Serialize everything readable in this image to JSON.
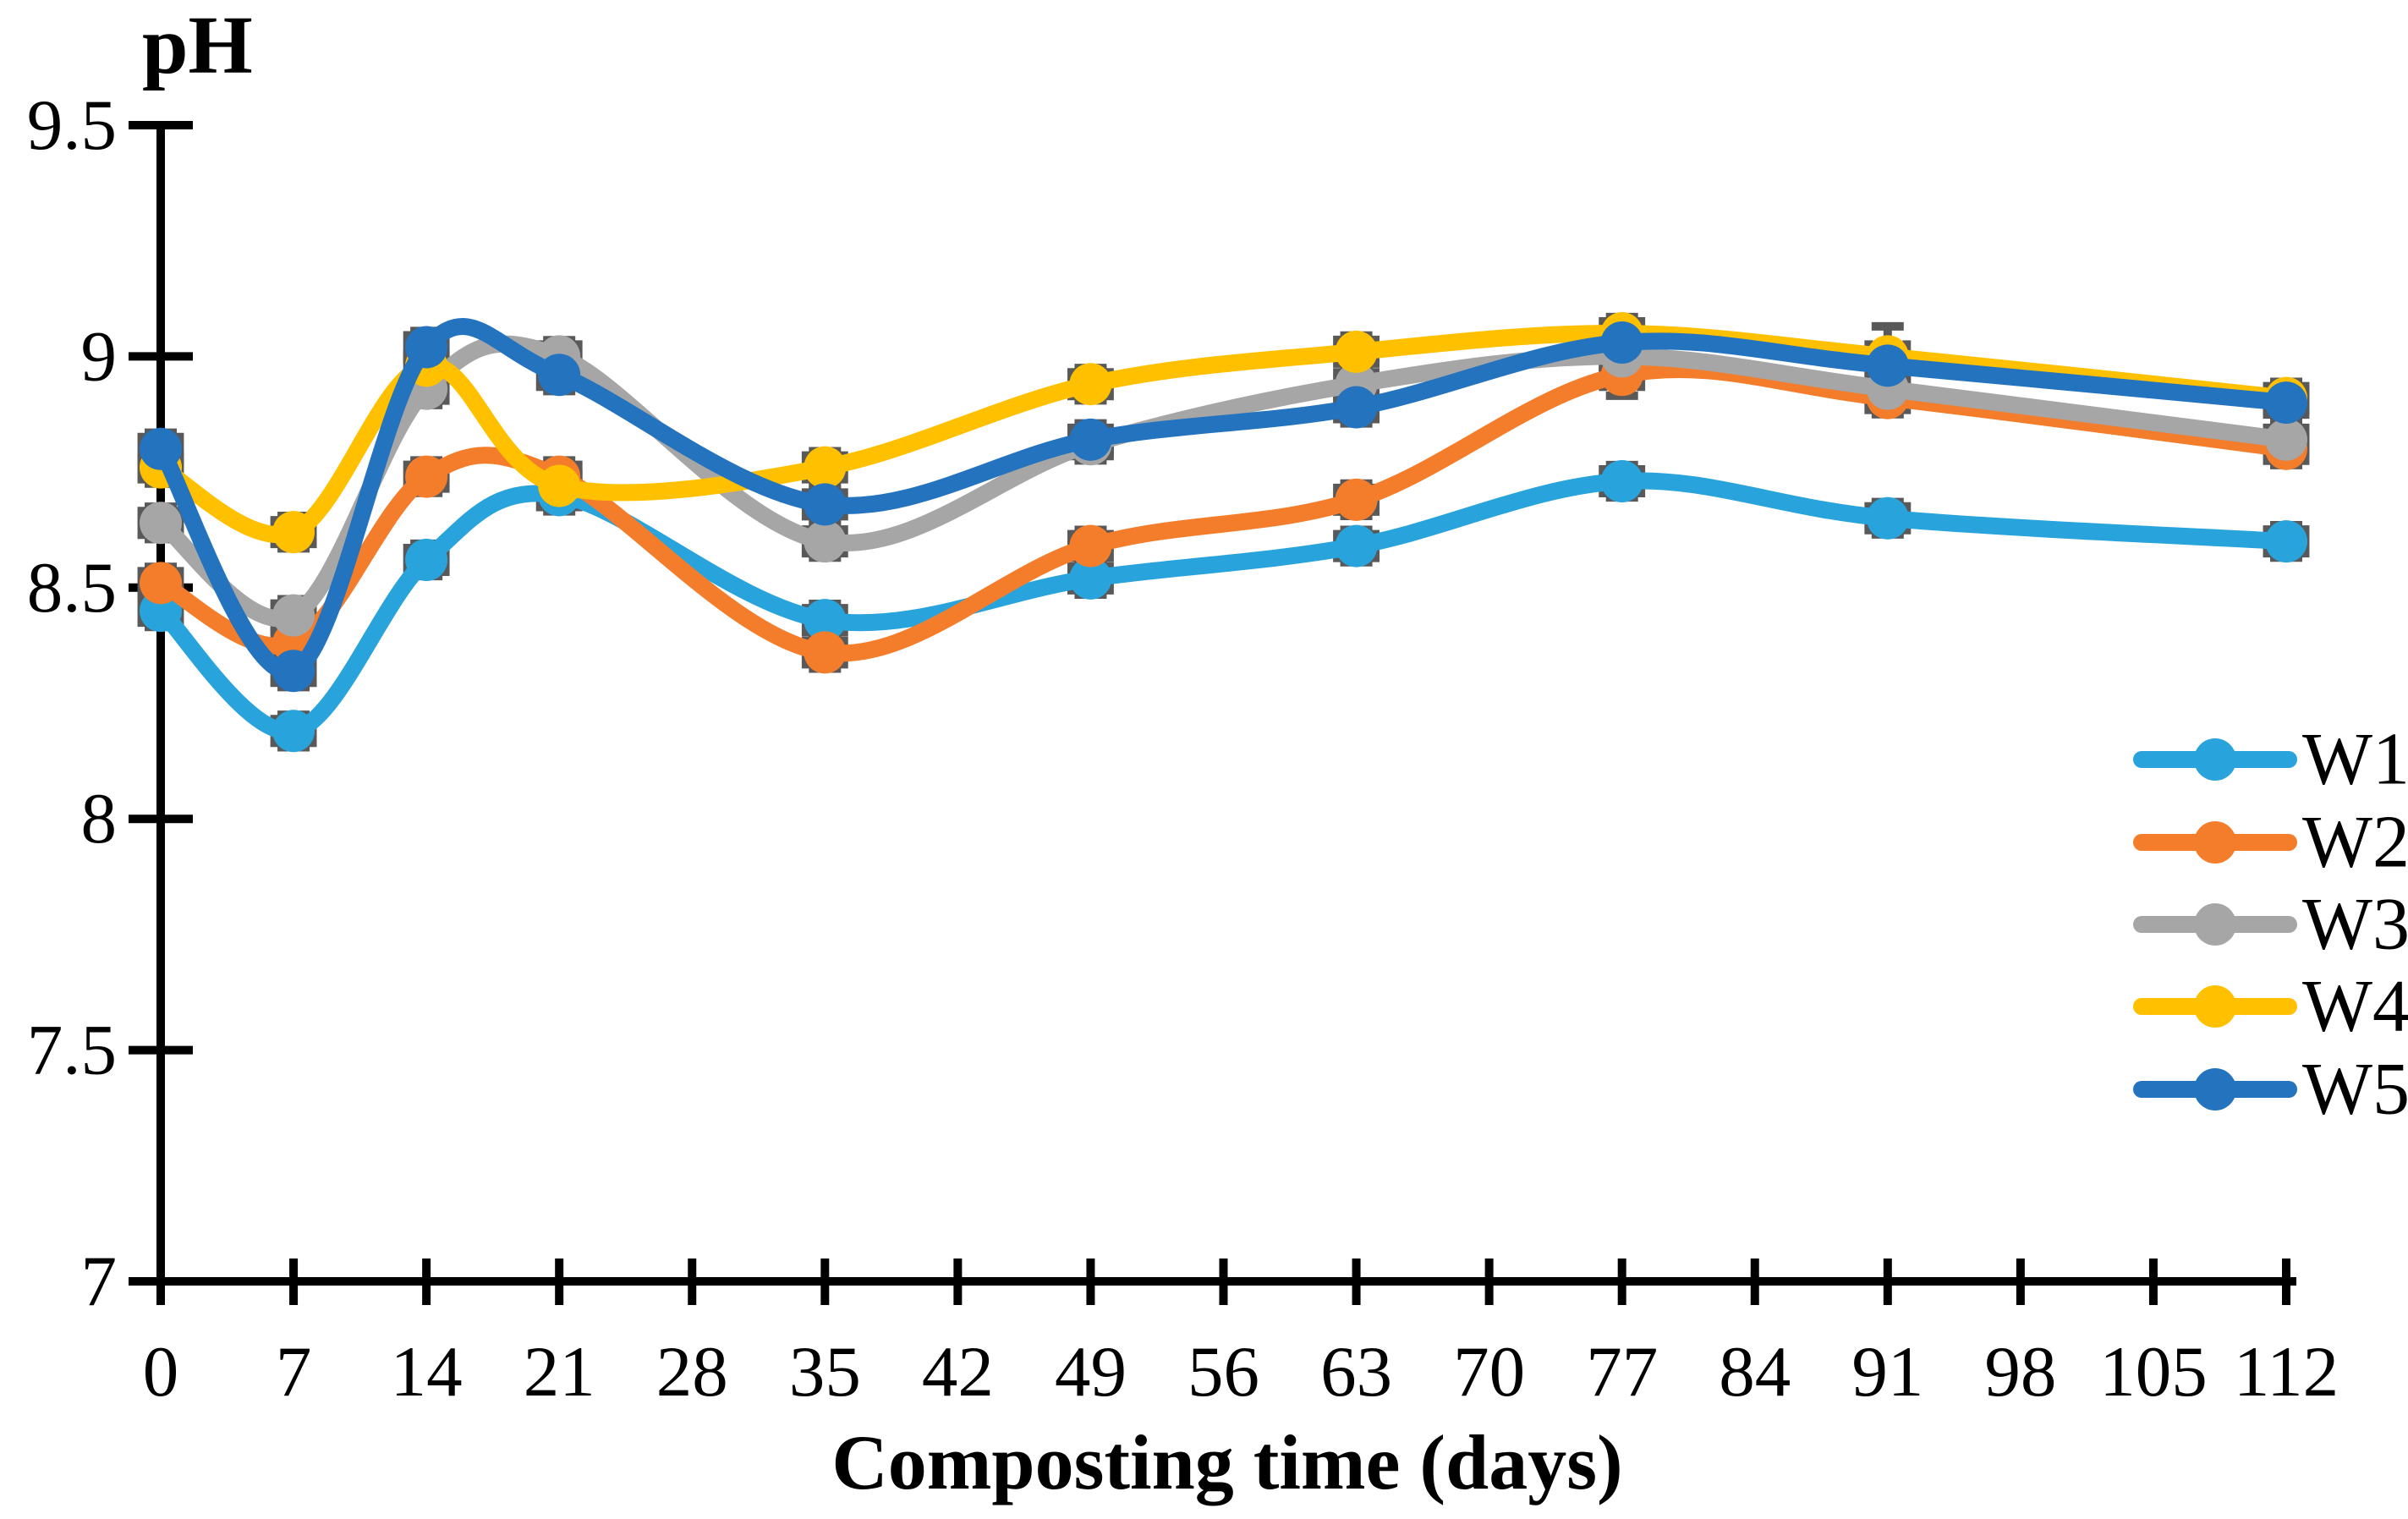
{
  "chart_data": {
    "type": "line",
    "title": "",
    "xlabel": "Composting time (days)",
    "ylabel": "pH",
    "xlim": [
      0,
      112
    ],
    "ylim": [
      7,
      9.5
    ],
    "x_ticks": [
      0,
      7,
      14,
      21,
      28,
      35,
      42,
      49,
      56,
      63,
      70,
      77,
      84,
      91,
      98,
      105,
      112
    ],
    "y_ticks": [
      "7",
      "7.5",
      "8",
      "8.5",
      "9",
      "9.5"
    ],
    "y_tick_values": [
      7,
      7.5,
      8,
      8.5,
      9,
      9.5
    ],
    "grid": false,
    "smooth": true,
    "legend_position": "right-middle",
    "x": [
      0,
      7,
      14,
      21,
      35,
      49,
      63,
      77,
      91,
      112
    ],
    "series": [
      {
        "name": "W1",
        "color": "#29A3DC",
        "values": [
          8.45,
          8.19,
          8.56,
          8.7,
          8.43,
          8.52,
          8.59,
          8.73,
          8.65,
          8.6
        ]
      },
      {
        "name": "W2",
        "color": "#F47D2B",
        "values": [
          8.51,
          8.38,
          8.74,
          8.74,
          8.36,
          8.59,
          8.69,
          8.96,
          8.91,
          8.8
        ]
      },
      {
        "name": "W3",
        "color": "#A6A6A6",
        "values": [
          8.64,
          8.44,
          8.93,
          9.0,
          8.6,
          8.81,
          8.94,
          9.0,
          8.93,
          8.82
        ]
      },
      {
        "name": "W4",
        "color": "#FFC000",
        "values": [
          8.76,
          8.62,
          8.98,
          8.72,
          8.76,
          8.94,
          9.01,
          9.05,
          9.0,
          8.91
        ]
      },
      {
        "name": "W5",
        "color": "#2473BE",
        "values": [
          8.8,
          8.32,
          9.02,
          8.96,
          8.68,
          8.82,
          8.89,
          9.03,
          8.98,
          8.9
        ]
      }
    ],
    "error_bars": {
      "color": "#595959",
      "y_default": 0.035,
      "x_days": 1.0,
      "overrides": [
        {
          "series": "W4",
          "x": 91,
          "y_err": 0.065
        },
        {
          "series": "W2",
          "x": 77,
          "y_err": 0.045
        }
      ]
    },
    "axis_color": "#000000"
  }
}
